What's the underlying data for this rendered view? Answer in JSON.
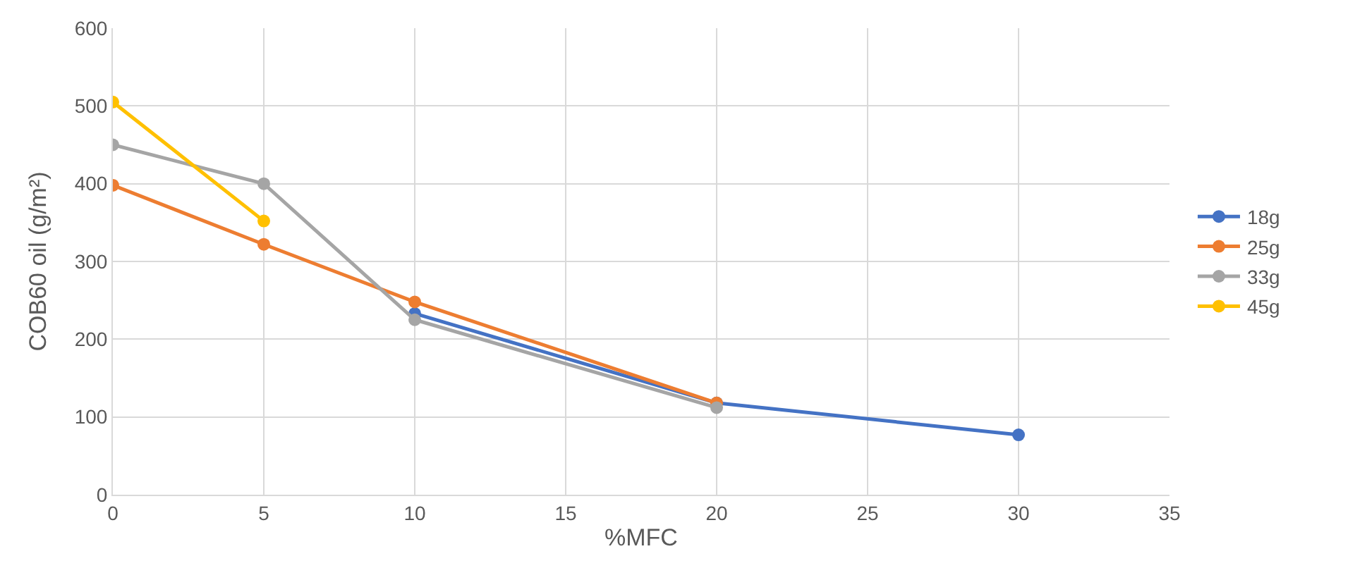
{
  "chart_data": {
    "type": "line",
    "xlabel": "%MFC",
    "ylabel": "COB60 oil (g/m²)",
    "xlim": [
      0,
      35
    ],
    "xticks": [
      0,
      5,
      10,
      15,
      20,
      25,
      30,
      35
    ],
    "ylim": [
      0,
      600
    ],
    "yticks": [
      0,
      100,
      200,
      300,
      400,
      500,
      600
    ],
    "grid": true,
    "legend": "right",
    "marker": "circle",
    "line_style": "solid",
    "series": [
      {
        "name": "18g",
        "color": "#4472c4",
        "x": [
          10,
          20,
          30
        ],
        "values": [
          233,
          118,
          77
        ]
      },
      {
        "name": "25g",
        "color": "#ed7d31",
        "x": [
          0,
          5,
          10,
          20
        ],
        "values": [
          398,
          322,
          248,
          118
        ]
      },
      {
        "name": "33g",
        "color": "#a5a5a5",
        "x": [
          0,
          5,
          10,
          20
        ],
        "values": [
          450,
          400,
          225,
          112
        ]
      },
      {
        "name": "45g",
        "color": "#ffc000",
        "x": [
          0,
          5
        ],
        "values": [
          505,
          352
        ]
      }
    ]
  }
}
